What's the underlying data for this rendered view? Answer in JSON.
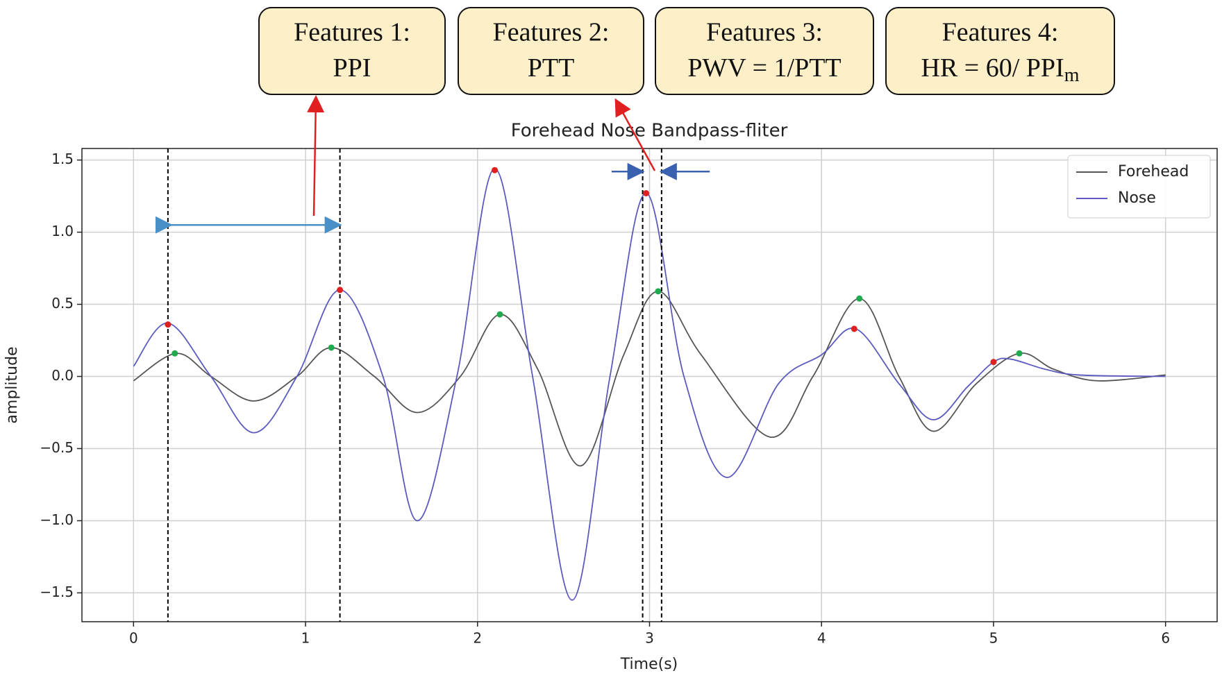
{
  "chart_data": {
    "type": "line",
    "title": "Forehead Nose Bandpass-fliter",
    "xlabel": "Time(s)",
    "ylabel": "amplitude",
    "xlim": [
      -0.3,
      6.3
    ],
    "ylim": [
      -1.7,
      1.58
    ],
    "xticks": [
      0,
      1,
      2,
      3,
      4,
      5,
      6
    ],
    "yticks": [
      {
        "value": -1.5,
        "label": "−1.5"
      },
      {
        "value": -1.0,
        "label": "−1.0"
      },
      {
        "value": -0.5,
        "label": "−0.5"
      },
      {
        "value": 0,
        "label": "0.0"
      },
      0.5,
      {
        "value": 1,
        "label": "1.0"
      },
      1.5
    ],
    "grid": true,
    "legend": "upper right",
    "series": [
      {
        "name": "Forehead",
        "color": "#555555",
        "x": [
          0.0,
          0.25,
          0.45,
          0.7,
          0.95,
          1.15,
          1.4,
          1.65,
          1.9,
          2.13,
          2.35,
          2.6,
          2.85,
          3.05,
          3.3,
          3.7,
          3.95,
          4.22,
          4.45,
          4.65,
          4.9,
          5.15,
          5.35,
          5.6,
          6.0
        ],
        "values": [
          -0.03,
          0.16,
          0.0,
          -0.17,
          0.0,
          0.2,
          0.0,
          -0.25,
          0.0,
          0.43,
          0.05,
          -0.62,
          0.15,
          0.59,
          0.15,
          -0.42,
          0.0,
          0.54,
          0.0,
          -0.38,
          -0.05,
          0.16,
          0.05,
          -0.03,
          0.01
        ],
        "peaks": {
          "color": "#1faa50",
          "x": [
            0.24,
            1.15,
            2.13,
            3.05,
            4.22,
            5.15
          ],
          "values": [
            0.16,
            0.2,
            0.43,
            0.59,
            0.54,
            0.16
          ]
        }
      },
      {
        "name": "Nose",
        "color": "#5a5abf",
        "x": [
          0.0,
          0.2,
          0.45,
          0.7,
          0.95,
          1.2,
          1.45,
          1.65,
          1.88,
          2.1,
          2.32,
          2.55,
          2.77,
          2.98,
          3.2,
          3.45,
          3.75,
          4.0,
          4.2,
          4.45,
          4.65,
          4.85,
          5.0,
          5.1,
          5.3,
          5.5,
          6.0
        ],
        "values": [
          0.07,
          0.37,
          0.0,
          -0.39,
          0.0,
          0.6,
          0.0,
          -1.0,
          0.0,
          1.44,
          0.0,
          -1.55,
          0.0,
          1.27,
          0.0,
          -0.7,
          -0.05,
          0.15,
          0.33,
          -0.05,
          -0.3,
          -0.07,
          0.1,
          0.12,
          0.05,
          0.01,
          0.0
        ],
        "peaks": {
          "color": "#e02020",
          "x": [
            0.2,
            1.2,
            2.1,
            2.98,
            4.19,
            5.0
          ],
          "values": [
            0.36,
            0.6,
            1.43,
            1.27,
            0.33,
            0.1
          ]
        }
      }
    ],
    "markers": [
      0.2,
      1.2,
      2.96,
      3.07
    ],
    "annotations": [
      {
        "title": "Features 1:",
        "text": "PPI"
      },
      {
        "title": "Features 2:",
        "text": "PTT"
      },
      {
        "title": "Features 3:",
        "text": "PWV = 1/PTT"
      },
      {
        "title": "Features 4:",
        "text": "HR = 60/ PPI",
        "subscript": "m"
      }
    ]
  }
}
